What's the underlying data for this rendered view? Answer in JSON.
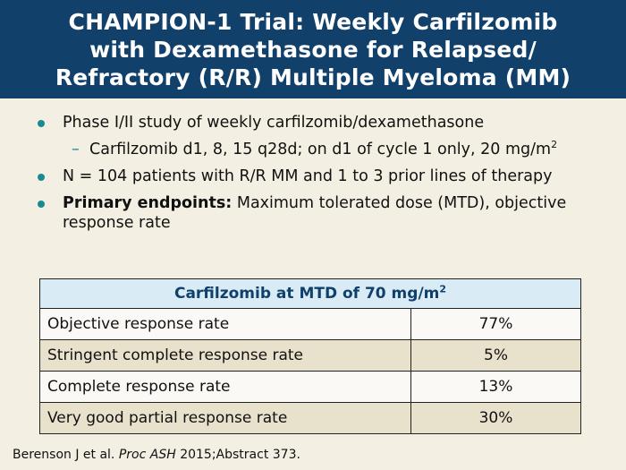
{
  "header": {
    "title_lines": [
      "CHAMPION-1 Trial: Weekly Carfilzomib",
      "with Dexamethasone for Relapsed/",
      "Refractory (R/R) Multiple Myeloma (MM)"
    ],
    "background_color": "#11406b"
  },
  "bullets": {
    "item1": "Phase I/II study of weekly carfilzomib/dexamethasone",
    "item1_sub": "Carfilzomib d1, 8, 15 q28d; on d1 of cycle 1 only, 20 mg/m",
    "item1_sub_sup": "2",
    "item2": "N = 104 patients with R/R MM and 1 to 3 prior lines of therapy",
    "item3_bold": "Primary endpoints:",
    "item3_rest": " Maximum tolerated dose (MTD), objective response rate",
    "bullet_color": "#1a8a8e"
  },
  "table": {
    "header": "Carfilzomib at MTD of 70 mg/m",
    "header_sup": "2",
    "rows": [
      {
        "label": "Objective response rate",
        "value": "77%"
      },
      {
        "label": "Stringent complete response rate",
        "value": "5%"
      },
      {
        "label": "Complete response rate",
        "value": "13%"
      },
      {
        "label": "Very good partial response rate",
        "value": "30%"
      }
    ]
  },
  "reference": {
    "authors": "Berenson J et al. ",
    "journal": "Proc ASH",
    "rest": " 2015;Abstract 373."
  }
}
